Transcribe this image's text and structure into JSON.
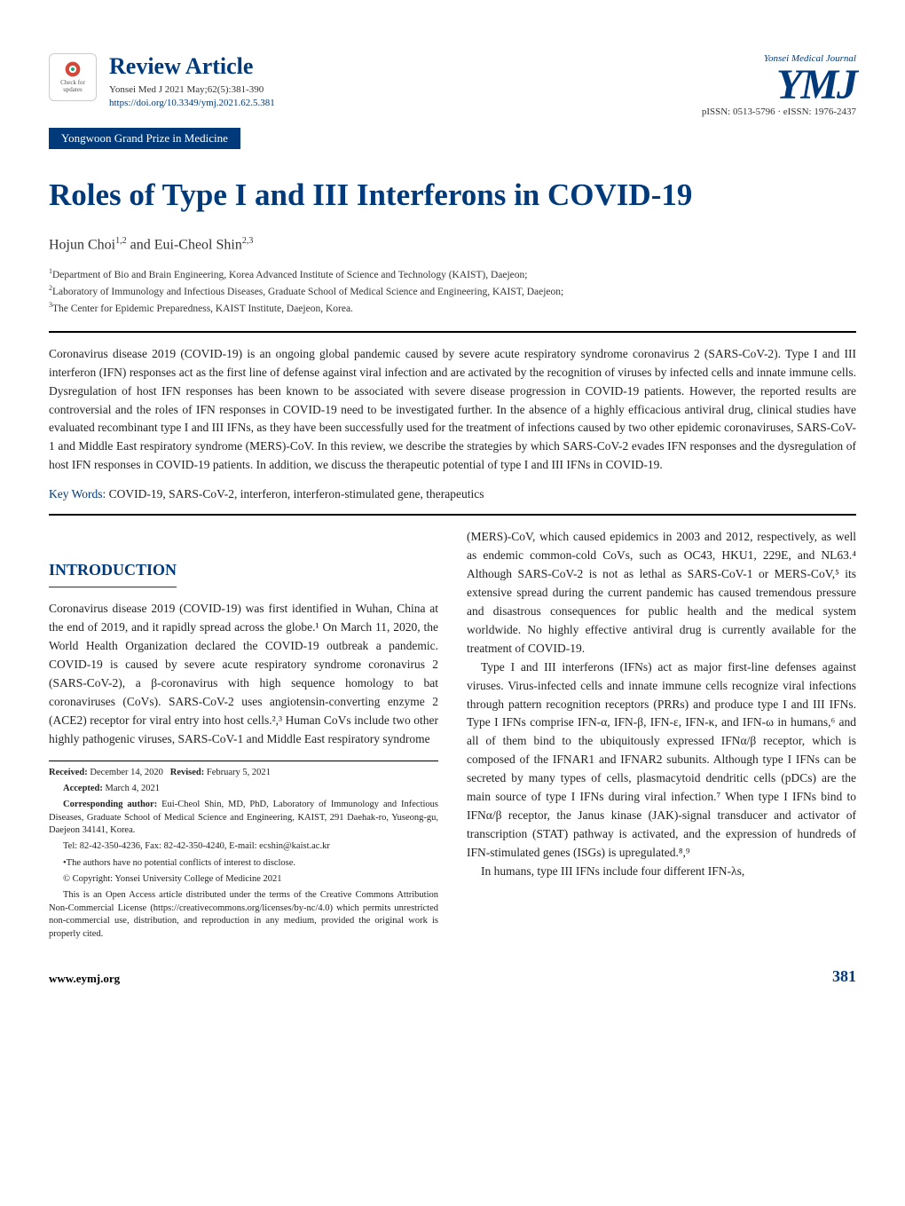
{
  "header": {
    "check_badge_top": "Check for",
    "check_badge_bottom": "updates",
    "review_label": "Review Article",
    "citation": "Yonsei Med J 2021 May;62(5):381-390",
    "doi": "https://doi.org/10.3349/ymj.2021.62.5.381",
    "journal_tagline": "Yonsei Medical Journal",
    "journal_logo": "YMJ",
    "issn": "pISSN: 0513-5796 · eISSN: 1976-2437"
  },
  "prize": "Yongwoon Grand Prize in Medicine",
  "title": "Roles of Type I and III Interferons in COVID-19",
  "authors_html": "Hojun Choi<sup>1,2</sup> and Eui-Cheol Shin<sup>2,3</sup>",
  "affiliations": [
    "1Department of Bio and Brain Engineering, Korea Advanced Institute of Science and Technology (KAIST), Daejeon;",
    "2Laboratory of Immunology and Infectious Diseases, Graduate School of Medical Science and Engineering, KAIST, Daejeon;",
    "3The Center for Epidemic Preparedness, KAIST Institute, Daejeon, Korea."
  ],
  "abstract": "Coronavirus disease 2019 (COVID-19) is an ongoing global pandemic caused by severe acute respiratory syndrome coronavirus 2 (SARS-CoV-2). Type I and III interferon (IFN) responses act as the first line of defense against viral infection and are activated by the recognition of viruses by infected cells and innate immune cells. Dysregulation of host IFN responses has been known to be associated with severe disease progression in COVID-19 patients. However, the reported results are controversial and the roles of IFN responses in COVID-19 need to be investigated further. In the absence of a highly efficacious antiviral drug, clinical studies have evaluated recombinant type I and III IFNs, as they have been successfully used for the treatment of infections caused by two other epidemic coronaviruses, SARS-CoV-1 and Middle East respiratory syndrome (MERS)-CoV. In this review, we describe the strategies by which SARS-CoV-2 evades IFN responses and the dysregulation of host IFN responses in COVID-19 patients. In addition, we discuss the therapeutic potential of type I and III IFNs in COVID-19.",
  "keywords_label": "Key Words: ",
  "keywords": "COVID-19, SARS-CoV-2, interferon, interferon-stimulated gene, therapeutics",
  "section_heading": "INTRODUCTION",
  "left_col": {
    "p1": "Coronavirus disease 2019 (COVID-19) was first identified in Wuhan, China at the end of 2019, and it rapidly spread across the globe.¹ On March 11, 2020, the World Health Organization declared the COVID-19 outbreak a pandemic. COVID-19 is caused by severe acute respiratory syndrome coronavirus 2 (SARS-CoV-2), a β-coronavirus with high sequence homology to bat coronaviruses (CoVs). SARS-CoV-2 uses angiotensin-converting enzyme 2 (ACE2) receptor for viral entry into host cells.²,³ Human CoVs include two other highly pathogenic viruses, SARS-CoV-1 and Middle East respiratory syndrome"
  },
  "footnotes": {
    "received_label": "Received:",
    "received": "December 14, 2020",
    "revised_label": "Revised:",
    "revised": "February 5, 2021",
    "accepted_label": "Accepted:",
    "accepted": "March 4, 2021",
    "corresp_label": "Corresponding author:",
    "corresp": "Eui-Cheol Shin, MD, PhD, Laboratory of Immunology and Infectious Diseases, Graduate School of Medical Science and Engineering, KAIST, 291 Daehak-ro, Yuseong-gu, Daejeon 34141, Korea.",
    "tel": "Tel: 82-42-350-4236, Fax: 82-42-350-4240, E-mail: ecshin@kaist.ac.kr",
    "coi": "•The authors have no potential conflicts of interest to disclose.",
    "copyright": "© Copyright: Yonsei University College of Medicine 2021",
    "license": "This is an Open Access article distributed under the terms of the Creative Commons Attribution Non-Commercial License (https://creativecommons.org/licenses/by-nc/4.0) which permits unrestricted non-commercial use, distribution, and reproduction in any medium, provided the original work is properly cited."
  },
  "right_col": {
    "p1": "(MERS)-CoV, which caused epidemics in 2003 and 2012, respectively, as well as endemic common-cold CoVs, such as OC43, HKU1, 229E, and NL63.⁴ Although SARS-CoV-2 is not as lethal as SARS-CoV-1 or MERS-CoV,⁵ its extensive spread during the current pandemic has caused tremendous pressure and disastrous consequences for public health and the medical system worldwide. No highly effective antiviral drug is currently available for the treatment of COVID-19.",
    "p2": "Type I and III interferons (IFNs) act as major first-line defenses against viruses. Virus-infected cells and innate immune cells recognize viral infections through pattern recognition receptors (PRRs) and produce type I and III IFNs. Type I IFNs comprise IFN-α, IFN-β, IFN-ε, IFN-κ, and IFN-ω in humans,⁶ and all of them bind to the ubiquitously expressed IFNα/β receptor, which is composed of the IFNAR1 and IFNAR2 subunits. Although type I IFNs can be secreted by many types of cells, plasmacytoid dendritic cells (pDCs) are the main source of type I IFNs during viral infection.⁷ When type I IFNs bind to IFNα/β receptor, the Janus kinase (JAK)-signal transducer and activator of transcription (STAT) pathway is activated, and the expression of hundreds of IFN-stimulated genes (ISGs) is upregulated.⁸,⁹",
    "p3": "In humans, type III IFNs include four different IFN-λs,"
  },
  "footer": {
    "url": "www.eymj.org",
    "page": "381"
  },
  "colors": {
    "brand_blue": "#003a7a",
    "text": "#222222",
    "background": "#ffffff"
  },
  "typography": {
    "main_title_fontsize": 35,
    "review_label_fontsize": 26,
    "body_fontsize": 13.5,
    "section_heading_fontsize": 18,
    "footnote_fontsize": 10.5
  }
}
